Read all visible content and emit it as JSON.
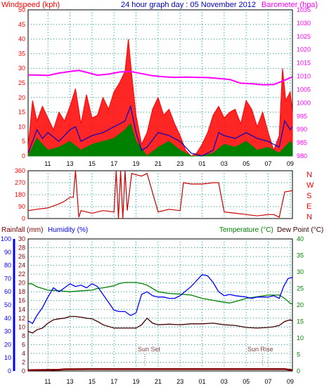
{
  "header": {
    "left_title": "Windspeed (kph)",
    "center_title": "24 hour graph day : 05 November 2012",
    "right_title": "Barometer (hpa)"
  },
  "lower_header": {
    "rainfall_label": "Rainfall (mm)",
    "humidity_label": "Humidity (%)",
    "temperature_label": "Temperature (°C)",
    "dewpoint_label": "Dew Point (°C)"
  },
  "annotations": {
    "sunset": "Sun Set",
    "sunrise": "Sun Rise"
  },
  "colors": {
    "background": "#ffffff",
    "title_red": "#ff0000",
    "title_blue": "#0000c0",
    "barometer": "#ff00ff",
    "wind_gust": "#ff0000",
    "wind_avg": "#0000c0",
    "wind_min": "#008000",
    "direction": "#cc0000",
    "humidity": "#0000ff",
    "temperature": "#008000",
    "dewpoint": "#400000",
    "rainfall": "#800000",
    "grid": "#00a0a0"
  },
  "chart_data": [
    {
      "type": "line",
      "id": "wind",
      "x_ticks": [
        "11",
        "13",
        "15",
        "17",
        "19",
        "21",
        "23",
        "01",
        "03",
        "05",
        "07",
        "09"
      ],
      "y_left_ticks": [
        "0",
        "5",
        "10",
        "15",
        "20",
        "25",
        "30",
        "35",
        "40",
        "45",
        "50"
      ],
      "y_left_range": [
        0,
        50
      ],
      "y_right_ticks": [
        "980",
        "985",
        "990",
        "995",
        "1000",
        "1005",
        "1010",
        "1015",
        "1020",
        "1025",
        "1030",
        "1035"
      ],
      "y_right_range": [
        980,
        1035
      ],
      "x_range": [
        9.2,
        33.2
      ],
      "grid": true,
      "series": [
        {
          "name": "Barometer",
          "axis": "right",
          "x": [
            9.2,
            10,
            11,
            12,
            13,
            13.8,
            14.5,
            15.5,
            16.5,
            17.5,
            18.5,
            19.5,
            20.5,
            21.5,
            22.5,
            23.5,
            24.5,
            25.5,
            26.5,
            27.5,
            28.5,
            29.5,
            30.5,
            31.5,
            32.2,
            33.2
          ],
          "values": [
            1010.5,
            1010.5,
            1010.3,
            1011.2,
            1011.8,
            1012.2,
            1011.5,
            1010.4,
            1010.8,
            1011.6,
            1011.8,
            1011.0,
            1010.2,
            1009.8,
            1009.6,
            1009.7,
            1009.6,
            1009.5,
            1009.2,
            1008.8,
            1007.4,
            1007.2,
            1006.8,
            1006.9,
            1008.0,
            1009.8
          ]
        },
        {
          "name": "Gust",
          "x": [
            9.2,
            9.6,
            10,
            10.5,
            11,
            11.5,
            12,
            12.5,
            13,
            13.5,
            14,
            14.5,
            15,
            15.5,
            16,
            16.5,
            17,
            17.5,
            18,
            18.3,
            18.6,
            19,
            19.5,
            20,
            20.5,
            21,
            21.5,
            22,
            22.5,
            23,
            23.5,
            24,
            24.5,
            25,
            25.5,
            26,
            26.5,
            27,
            27.5,
            28,
            28.5,
            29,
            29.5,
            30,
            30.5,
            31,
            31.5,
            32,
            32.3,
            32.6,
            33,
            33.2
          ],
          "values": [
            3,
            19,
            12,
            17,
            13,
            9,
            15,
            12,
            17,
            23,
            11,
            21,
            13,
            14,
            20,
            16,
            22,
            25,
            29,
            40,
            28,
            14,
            4,
            8,
            16,
            20,
            14,
            16,
            11,
            7,
            2,
            0,
            1,
            4,
            8,
            14,
            17,
            13,
            15,
            16,
            11,
            19,
            16,
            10,
            15,
            8,
            2,
            7,
            30,
            19,
            22,
            15
          ]
        },
        {
          "name": "Average",
          "x": [
            9.2,
            10,
            10.5,
            11,
            12,
            13,
            13.5,
            14,
            15,
            16,
            17,
            18,
            18.5,
            19,
            19.5,
            20,
            21,
            22,
            23,
            24,
            25,
            26,
            26.5,
            27,
            28,
            29,
            30,
            31,
            32,
            32.5,
            33,
            33.2
          ],
          "values": [
            1,
            9,
            6,
            8,
            5,
            9,
            10,
            5,
            7,
            8,
            10,
            12,
            17,
            8,
            2,
            3,
            8,
            7,
            5,
            1,
            0,
            2,
            8,
            7,
            6,
            8,
            6,
            5,
            3,
            12,
            9,
            10
          ]
        },
        {
          "name": "Minimum",
          "x": [
            9.2,
            10,
            11,
            12,
            13,
            14,
            15,
            16,
            17,
            18,
            18.5,
            19,
            20,
            21,
            22,
            23,
            24,
            25,
            26,
            27,
            28,
            29,
            30,
            31,
            32,
            33,
            33.2
          ],
          "values": [
            0,
            6,
            2,
            3,
            5,
            2,
            4,
            5,
            6,
            9,
            11,
            5,
            0,
            3,
            5,
            2,
            0,
            0,
            1,
            4,
            3,
            5,
            2,
            3,
            1,
            5,
            4
          ]
        }
      ]
    },
    {
      "type": "line",
      "id": "direction",
      "y_left_ticks": [
        "0",
        "90",
        "180",
        "270",
        "360"
      ],
      "y_range": [
        0,
        360
      ],
      "y_right_labels": [
        "N",
        "W",
        "S",
        "E",
        "N"
      ],
      "series": [
        {
          "name": "Wind Direction",
          "x": [
            9.2,
            10,
            11,
            12,
            12.5,
            13,
            13.3,
            13.5,
            13.8,
            14,
            15,
            16,
            17,
            17.2,
            17.4,
            17.6,
            17.8,
            18,
            18.2,
            18.6,
            19,
            19.5,
            20,
            21,
            22,
            23,
            23.3,
            24,
            25,
            26,
            26.5,
            27,
            28,
            29,
            30,
            31,
            31.5,
            32,
            32.5,
            33.2
          ],
          "values": [
            60,
            70,
            80,
            110,
            130,
            160,
            160,
            360,
            10,
            60,
            40,
            60,
            50,
            360,
            0,
            360,
            0,
            360,
            60,
            340,
            330,
            320,
            340,
            50,
            70,
            60,
            270,
            260,
            260,
            270,
            270,
            50,
            40,
            30,
            20,
            30,
            30,
            10,
            200,
            210
          ]
        }
      ]
    },
    {
      "type": "line",
      "id": "temperature",
      "y_left_ticks": [
        "0",
        "10",
        "20",
        "30",
        "40",
        "50",
        "60",
        "70",
        "80",
        "90",
        "100"
      ],
      "y_left_range": [
        0,
        100
      ],
      "y_mid_ticks": [
        "0",
        "2",
        "4",
        "6",
        "8",
        "10",
        "12",
        "14",
        "16",
        "18",
        "20",
        "22",
        "24",
        "26",
        "28",
        "30"
      ],
      "y_mid_range": [
        0,
        30
      ],
      "y_right_ticks": [
        "0",
        "5",
        "10",
        "15",
        "20",
        "25",
        "30",
        "35",
        "40"
      ],
      "y_right_range": [
        0,
        40
      ],
      "series": [
        {
          "name": "Humidity",
          "axis": "left",
          "x": [
            9.2,
            9.6,
            10,
            10.5,
            11,
            11.5,
            12,
            12.5,
            13,
            13.5,
            14,
            14.5,
            15,
            15.5,
            16,
            16.5,
            17,
            17.5,
            18,
            18.5,
            19,
            19.5,
            20,
            20.5,
            21,
            21.5,
            22,
            22.5,
            23,
            24,
            25,
            25.5,
            26,
            26.5,
            27,
            27.5,
            28,
            29,
            29.5,
            30,
            31,
            31.5,
            32,
            32.4,
            32.8,
            33.2
          ],
          "values": [
            38,
            36,
            42,
            48,
            56,
            63,
            60,
            63,
            66,
            64,
            65,
            63,
            66,
            64,
            58,
            52,
            46,
            45,
            45,
            42,
            44,
            58,
            60,
            57,
            56,
            56,
            55,
            55,
            57,
            64,
            73,
            72,
            67,
            60,
            57,
            58,
            57,
            56,
            55,
            56,
            56,
            57,
            55,
            64,
            70,
            71
          ]
        },
        {
          "name": "Temperature",
          "axis": "right",
          "x": [
            9.2,
            9.6,
            10,
            11,
            12,
            13,
            14,
            15,
            15.5,
            16,
            17,
            17.5,
            18,
            19,
            19.5,
            20,
            21,
            22,
            23,
            24,
            25,
            26,
            27,
            27.5,
            28,
            29,
            30,
            31,
            32,
            32.5,
            33,
            33.2
          ],
          "values": [
            26.5,
            26.3,
            25.5,
            24.5,
            24.3,
            24,
            24.3,
            24.5,
            25,
            25.2,
            25.8,
            26.5,
            26.8,
            26.8,
            26.5,
            26,
            24,
            23.5,
            23.3,
            23,
            22,
            21.4,
            20.8,
            20.6,
            21,
            22,
            22.5,
            23,
            23,
            22,
            20.5,
            20.3
          ]
        },
        {
          "name": "Dew Point",
          "axis": "right",
          "x": [
            9.2,
            9.6,
            10,
            10.5,
            11,
            11.5,
            12,
            12.5,
            13,
            13.5,
            14,
            14.5,
            15,
            15.5,
            16,
            17,
            18,
            19,
            19.5,
            20,
            20.5,
            21,
            22,
            23,
            24,
            25,
            26,
            27,
            28,
            29,
            30,
            31,
            31.5,
            32,
            32.5,
            33,
            33.2
          ],
          "values": [
            12,
            11.5,
            12.5,
            13,
            14.5,
            15.5,
            15.8,
            16,
            16.5,
            16.5,
            16.3,
            16,
            15.8,
            15,
            14,
            13,
            13,
            13,
            14,
            16,
            14.5,
            14,
            14.2,
            14,
            14.3,
            14.3,
            14.5,
            14,
            13.8,
            13.2,
            13,
            13.2,
            13.4,
            13.8,
            15,
            15.5,
            15.2
          ]
        },
        {
          "name": "Rainfall",
          "axis": "mid",
          "x": [
            9.2,
            12,
            12.5,
            15,
            19,
            20,
            24,
            28,
            32,
            32.5,
            33.2
          ],
          "values": [
            0.2,
            0.3,
            0.4,
            0.45,
            0.45,
            0.45,
            0.45,
            0.45,
            0.45,
            0.45,
            0.2
          ]
        }
      ]
    }
  ]
}
